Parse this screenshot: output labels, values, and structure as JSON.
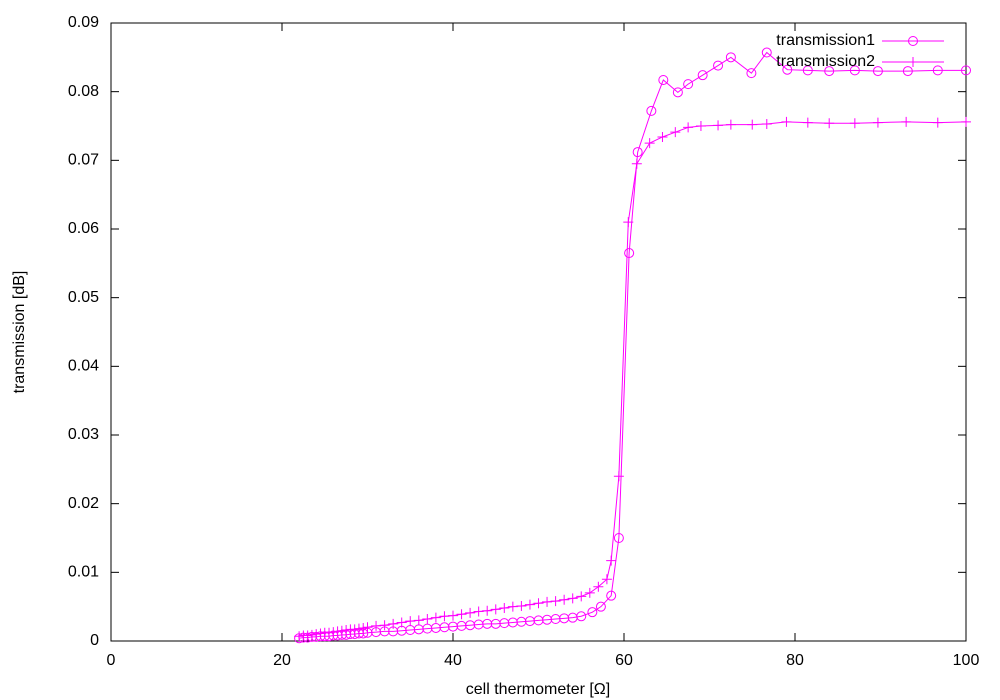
{
  "chart_data": {
    "type": "line",
    "x_label": "cell thermometer [Ω]",
    "y_label": "transmission [dB]",
    "xlim": [
      0,
      100
    ],
    "xticks": [
      0,
      20,
      40,
      60,
      80,
      100
    ],
    "ylim": [
      0,
      0.09
    ],
    "yticks": [
      0,
      0.01,
      0.02,
      0.03,
      0.04,
      0.05,
      0.06,
      0.07,
      0.08,
      0.09
    ],
    "legend": "top-right",
    "series": [
      {
        "name": "transmission1",
        "color": "#ff00ff",
        "marker": "circle",
        "x": [
          22,
          22.5,
          23,
          23.5,
          24,
          24.5,
          25,
          25.5,
          26,
          26.5,
          27,
          27.5,
          28,
          28.5,
          29,
          29.5,
          30,
          31,
          32,
          33,
          34,
          35,
          36,
          37,
          38,
          39,
          40,
          41,
          42,
          43,
          44,
          45,
          46,
          47,
          48,
          49,
          50,
          51,
          52,
          53,
          54,
          55,
          56.3,
          57.3,
          58.5,
          59.4,
          60.6,
          61.6,
          63.2,
          64.6,
          66.3,
          67.5,
          69.2,
          71,
          72.5,
          74.9,
          76.7,
          79.1,
          81.5,
          84,
          87,
          89.7,
          93.2,
          96.7,
          100
        ],
        "values": [
          0.0004,
          0.0005,
          0.0005,
          0.0006,
          0.0006,
          0.0007,
          0.0007,
          0.0007,
          0.0008,
          0.0008,
          0.0009,
          0.0009,
          0.001,
          0.001,
          0.0011,
          0.0011,
          0.0012,
          0.0013,
          0.0014,
          0.0014,
          0.0015,
          0.0016,
          0.0017,
          0.0018,
          0.0019,
          0.002,
          0.0021,
          0.0022,
          0.0023,
          0.0024,
          0.0025,
          0.0025,
          0.0026,
          0.0027,
          0.0028,
          0.0029,
          0.003,
          0.0031,
          0.0032,
          0.0033,
          0.0034,
          0.0036,
          0.0042,
          0.005,
          0.0066,
          0.015,
          0.0565,
          0.0712,
          0.0772,
          0.0817,
          0.0799,
          0.0811,
          0.0824,
          0.0838,
          0.085,
          0.0827,
          0.0857,
          0.0832,
          0.0831,
          0.083,
          0.0831,
          0.083,
          0.083,
          0.0831,
          0.0831
        ]
      },
      {
        "name": "transmission2",
        "color": "#ff00ff",
        "marker": "plus",
        "x": [
          22,
          22.5,
          23,
          23.5,
          24,
          24.5,
          25,
          25.5,
          26,
          26.5,
          27,
          27.5,
          28,
          28.5,
          29,
          29.5,
          30,
          31,
          32,
          33,
          34,
          35,
          36,
          37,
          38,
          39,
          40,
          41,
          42,
          43,
          44,
          45,
          46,
          47,
          48,
          49,
          50,
          51,
          52,
          53,
          54,
          55,
          56,
          57,
          58,
          58.5,
          59.4,
          60.5,
          61.5,
          63,
          64.5,
          66,
          67.5,
          69,
          71,
          72.5,
          75,
          76.7,
          79,
          81.5,
          84,
          87,
          89.7,
          93,
          96.7,
          100
        ],
        "values": [
          0.0007,
          0.0008,
          0.0008,
          0.0009,
          0.001,
          0.0011,
          0.0012,
          0.0012,
          0.0013,
          0.0014,
          0.0015,
          0.0016,
          0.0017,
          0.0017,
          0.0018,
          0.0019,
          0.002,
          0.0022,
          0.0023,
          0.0025,
          0.0027,
          0.0029,
          0.003,
          0.0032,
          0.0034,
          0.0036,
          0.0037,
          0.0039,
          0.0041,
          0.0043,
          0.0044,
          0.0046,
          0.0048,
          0.005,
          0.0051,
          0.0053,
          0.0055,
          0.0057,
          0.0058,
          0.006,
          0.0062,
          0.0065,
          0.007,
          0.0079,
          0.009,
          0.0117,
          0.024,
          0.061,
          0.0695,
          0.0725,
          0.0734,
          0.0741,
          0.0748,
          0.075,
          0.0751,
          0.0752,
          0.0752,
          0.0753,
          0.0756,
          0.0755,
          0.0754,
          0.0754,
          0.0755,
          0.0756,
          0.0755,
          0.0756
        ]
      }
    ]
  }
}
